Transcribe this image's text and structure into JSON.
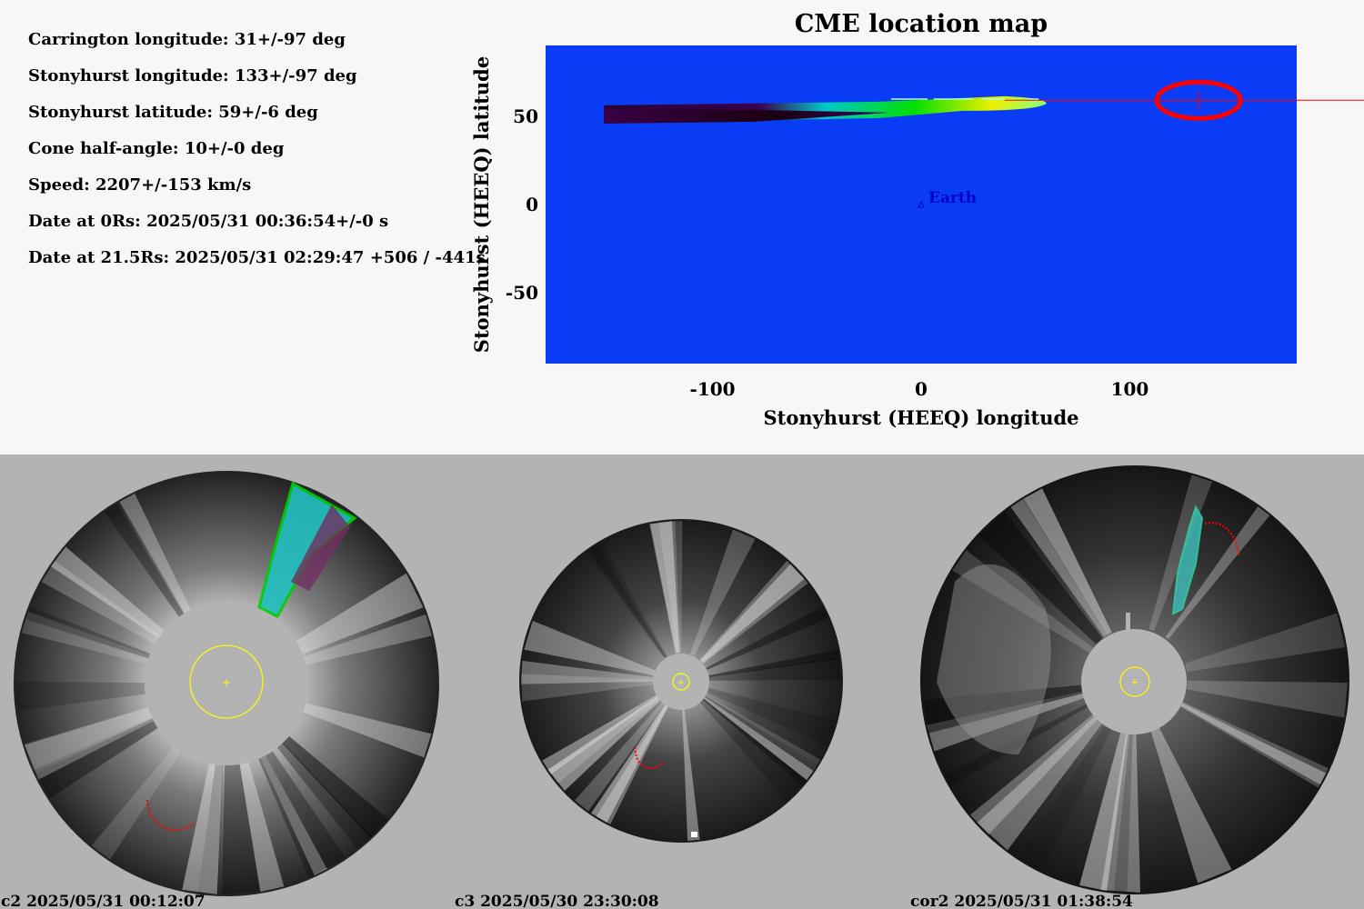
{
  "parameters": [
    "Carrington longitude: 31+/-97 deg",
    "Stonyhurst longitude: 133+/-97 deg",
    "Stonyhurst latitude: 59+/-6 deg",
    "Cone half-angle: 10+/-0 deg",
    "Speed: 2207+/-153 km/s",
    "Date at 0Rs: 2025/05/31 00:36:54+/-0 s",
    "Date at 21.5Rs: 2025/05/31 02:29:47 +506 / -441s"
  ],
  "chart_data": {
    "type": "heatmap",
    "title": "CME location map",
    "xlabel": "Stonyhurst (HEEQ) longitude",
    "ylabel": "Stonyhurst (HEEQ) latitude",
    "xlim": [
      -180,
      180
    ],
    "ylim": [
      -90,
      90
    ],
    "x_ticks": [
      -100,
      0,
      100
    ],
    "y_ticks": [
      -50,
      0,
      50
    ],
    "background_color": "#0a3cf5",
    "annotations": [
      {
        "label": "Earth",
        "x": 0,
        "y": 0,
        "marker": "triangle",
        "color": "#0000cc"
      }
    ],
    "cme_location": {
      "lon": 133,
      "lat": 59,
      "marker_color": "#ff0000"
    },
    "band": {
      "lon_min": -152,
      "lon_max": 60,
      "lat_center": 52
    }
  },
  "panels": [
    {
      "label": "c2 2025/05/31 00:12:07"
    },
    {
      "label": "c3 2025/05/30 23:30:08"
    },
    {
      "label": "cor2 2025/05/31 01:38:54"
    }
  ]
}
